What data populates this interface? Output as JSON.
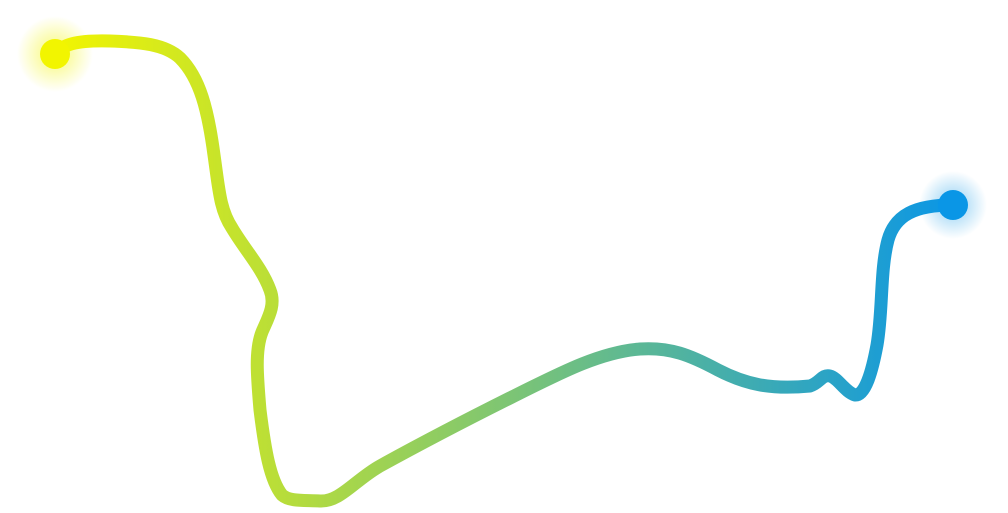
{
  "colors": {
    "background": "#ffffff",
    "gradient_start": "#f2f500",
    "gradient_end": "#0a96e6",
    "start_glow": "#f2f500",
    "end_glow": "#0a96e6"
  },
  "icons": {
    "start_marker": "circle-icon",
    "end_marker": "circle-icon"
  }
}
